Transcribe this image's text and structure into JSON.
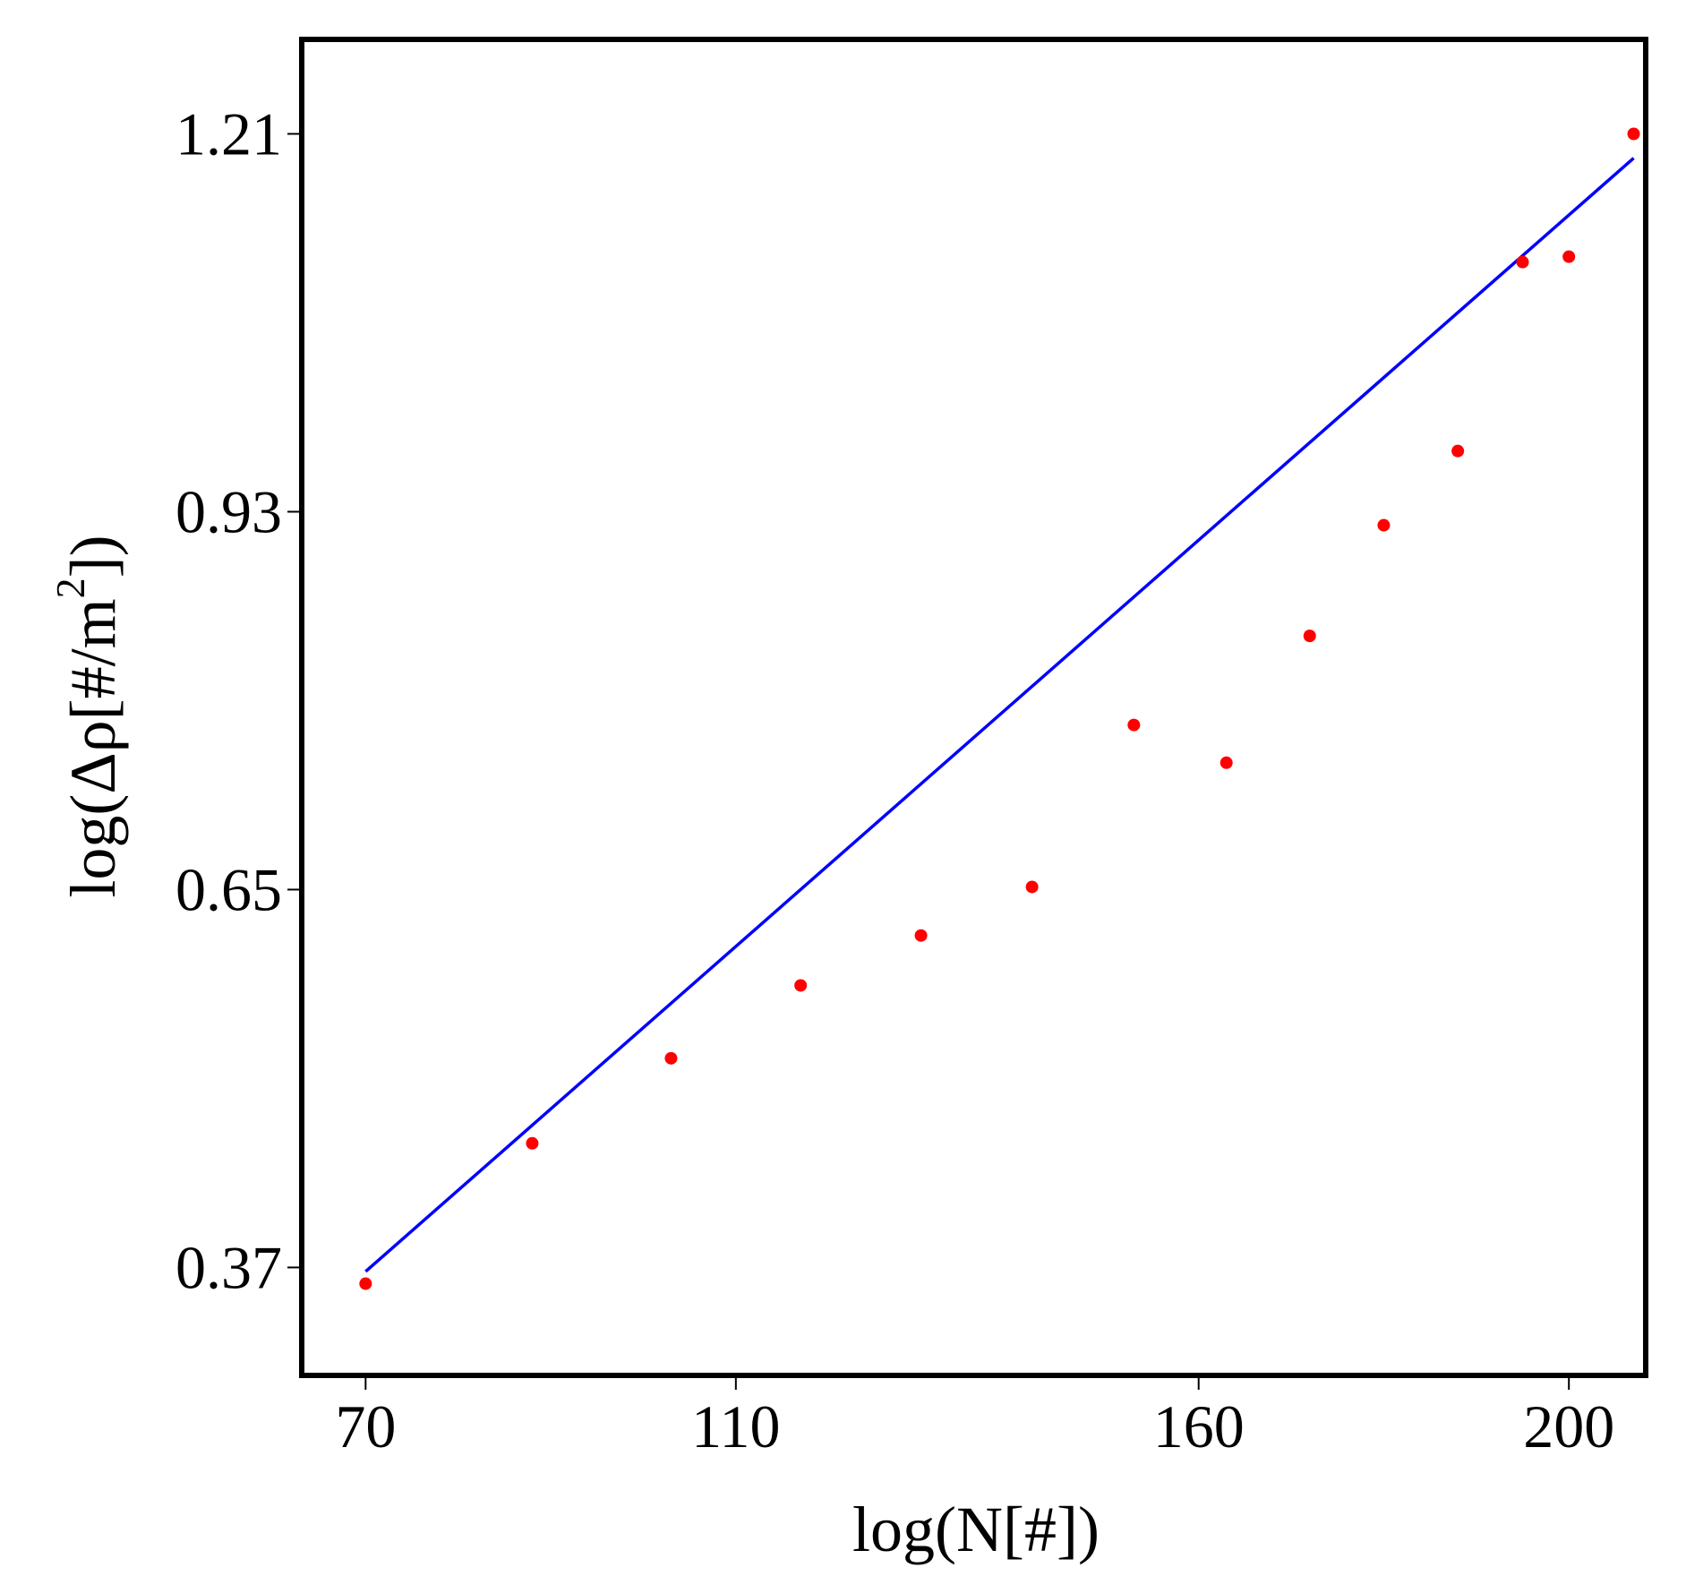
{
  "chart_data": {
    "type": "scatter",
    "xlabel": "log(N[#])",
    "ylabel_main": "log(Δρ[#/m",
    "ylabel_sup": "2",
    "ylabel_end": "])",
    "xlim": [
      63.1,
      208.3
    ],
    "ylim": [
      0.29,
      1.28
    ],
    "x_ticks": [
      {
        "value": 70,
        "label": "70"
      },
      {
        "value": 110,
        "label": "110"
      },
      {
        "value": 160,
        "label": "160"
      },
      {
        "value": 200,
        "label": "200"
      }
    ],
    "y_ticks": [
      {
        "value": 0.37,
        "label": "0.37"
      },
      {
        "value": 0.65,
        "label": "0.65"
      },
      {
        "value": 0.93,
        "label": "0.93"
      },
      {
        "value": 1.21,
        "label": "1.21"
      }
    ],
    "grid": false,
    "colors": {
      "points": "#ff0000",
      "fit_line": "#0000ff",
      "axes": "#000000"
    },
    "points": [
      {
        "x": 70,
        "y": 0.358
      },
      {
        "x": 88,
        "y": 0.462
      },
      {
        "x": 103,
        "y": 0.525
      },
      {
        "x": 117,
        "y": 0.579
      },
      {
        "x": 130,
        "y": 0.616
      },
      {
        "x": 142,
        "y": 0.652
      },
      {
        "x": 153,
        "y": 0.772
      },
      {
        "x": 163,
        "y": 0.744
      },
      {
        "x": 172,
        "y": 0.838
      },
      {
        "x": 180,
        "y": 0.92
      },
      {
        "x": 188,
        "y": 0.975
      },
      {
        "x": 195,
        "y": 1.115
      },
      {
        "x": 200,
        "y": 1.119
      },
      {
        "x": 207,
        "y": 1.21
      }
    ],
    "fit_line": [
      {
        "x": 70,
        "y": 0.367
      },
      {
        "x": 207,
        "y": 1.192
      }
    ]
  }
}
